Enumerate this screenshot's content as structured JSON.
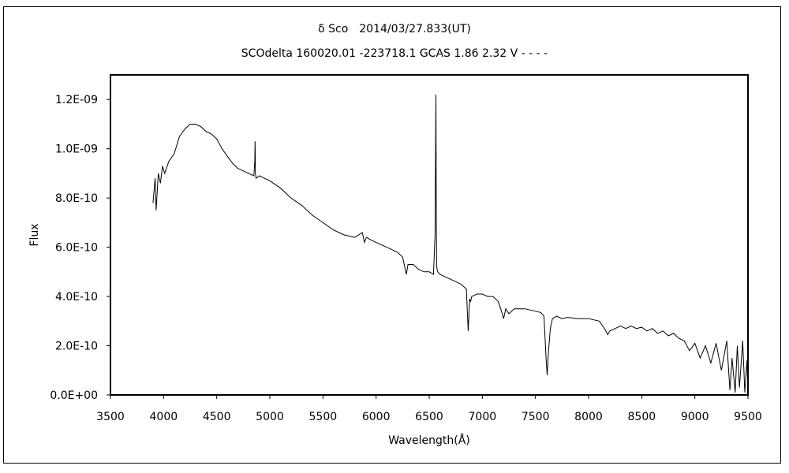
{
  "chart_data": {
    "type": "line",
    "title": "δ Sco　2014/03/27.833(UT)",
    "subtitle": "SCOdelta 160020.01 -223718.1 GCAS 1.86 2.32 V - - - -",
    "xlabel": "Wavelength(Å)",
    "ylabel": "Flux",
    "xlim": [
      3500,
      9500
    ],
    "ylim": [
      0,
      1.3e-09
    ],
    "xticks": [
      3500,
      4000,
      4500,
      5000,
      5500,
      6000,
      6500,
      7000,
      7500,
      8000,
      8500,
      9000,
      9500
    ],
    "yticks": [
      0,
      2e-10,
      4e-10,
      6e-10,
      8e-10,
      1e-09,
      1.2e-09
    ],
    "ytick_labels": [
      "0.0E+00",
      "2.0E-10",
      "4.0E-10",
      "6.0E-10",
      "8.0E-10",
      "1.0E-09",
      "1.2E-09"
    ],
    "grid": false,
    "series": [
      {
        "x": [
          3900,
          3920,
          3930,
          3950,
          3970,
          3990,
          4010,
          4050,
          4100,
          4150,
          4200,
          4250,
          4300,
          4350,
          4400,
          4450,
          4500,
          4550,
          4600,
          4650,
          4700,
          4750,
          4800,
          4850,
          4858,
          4861,
          4864,
          4870,
          4900,
          4950,
          5000,
          5100,
          5200,
          5300,
          5400,
          5500,
          5600,
          5700,
          5800,
          5870,
          5890,
          5910,
          5950,
          6000,
          6100,
          6200,
          6250,
          6270,
          6285,
          6300,
          6350,
          6400,
          6450,
          6500,
          6540,
          6555,
          6560,
          6563,
          6566,
          6570,
          6580,
          6600,
          6650,
          6700,
          6750,
          6800,
          6850,
          6867,
          6880,
          6890,
          6900,
          6950,
          7000,
          7050,
          7100,
          7150,
          7180,
          7200,
          7220,
          7250,
          7300,
          7400,
          7500,
          7550,
          7580,
          7600,
          7610,
          7620,
          7640,
          7660,
          7700,
          7750,
          7800,
          7900,
          8000,
          8100,
          8150,
          8180,
          8200,
          8250,
          8300,
          8350,
          8400,
          8450,
          8500,
          8550,
          8600,
          8650,
          8700,
          8750,
          8800,
          8850,
          8900,
          8950,
          9000,
          9050,
          9100,
          9150,
          9200,
          9250,
          9300,
          9330,
          9350,
          9380,
          9400,
          9420,
          9450,
          9470,
          9490,
          9500
        ],
        "y": [
          7.8e-10,
          8.8e-10,
          7.5e-10,
          9e-10,
          8.6e-10,
          9.3e-10,
          9e-10,
          9.5e-10,
          9.8e-10,
          1.05e-09,
          1.08e-09,
          1.1e-09,
          1.1e-09,
          1.09e-09,
          1.07e-09,
          1.06e-09,
          1.04e-09,
          1e-09,
          9.7e-10,
          9.4e-10,
          9.2e-10,
          9.1e-10,
          9e-10,
          8.9e-10,
          9.5e-10,
          1.03e-09,
          9e-10,
          8.8e-10,
          8.9e-10,
          8.8e-10,
          8.7e-10,
          8.4e-10,
          8e-10,
          7.7e-10,
          7.3e-10,
          7e-10,
          6.7e-10,
          6.5e-10,
          6.4e-10,
          6.6e-10,
          6.2e-10,
          6.4e-10,
          6.3e-10,
          6.2e-10,
          6e-10,
          5.8e-10,
          5.6e-10,
          5.2e-10,
          4.9e-10,
          5.3e-10,
          5.3e-10,
          5.1e-10,
          5e-10,
          5e-10,
          4.9e-10,
          6.5e-10,
          1e-09,
          1.22e-09,
          8e-10,
          5.2e-10,
          5e-10,
          4.9e-10,
          4.8e-10,
          4.7e-10,
          4.6e-10,
          4.5e-10,
          4.3e-10,
          2.6e-10,
          3.9e-10,
          3.8e-10,
          4e-10,
          4.1e-10,
          4.1e-10,
          4e-10,
          4e-10,
          3.8e-10,
          3.4e-10,
          3.1e-10,
          3.5e-10,
          3.3e-10,
          3.5e-10,
          3.5e-10,
          3.4e-10,
          3.35e-10,
          3.2e-10,
          1.5e-10,
          8e-11,
          1.6e-10,
          2.7e-10,
          3.1e-10,
          3.2e-10,
          3.1e-10,
          3.15e-10,
          3.1e-10,
          3.1e-10,
          3e-10,
          2.7e-10,
          2.45e-10,
          2.6e-10,
          2.7e-10,
          2.8e-10,
          2.7e-10,
          2.8e-10,
          2.7e-10,
          2.75e-10,
          2.6e-10,
          2.7e-10,
          2.5e-10,
          2.6e-10,
          2.4e-10,
          2.5e-10,
          2.3e-10,
          2.2e-10,
          1.8e-10,
          2.1e-10,
          1.5e-10,
          2e-10,
          1.3e-10,
          2.1e-10,
          1e-10,
          2.2e-10,
          2e-11,
          1.5e-10,
          1e-11,
          2e-10,
          3e-11,
          2.2e-10,
          1e-11,
          1.4e-10,
          2e-11
        ]
      }
    ]
  }
}
